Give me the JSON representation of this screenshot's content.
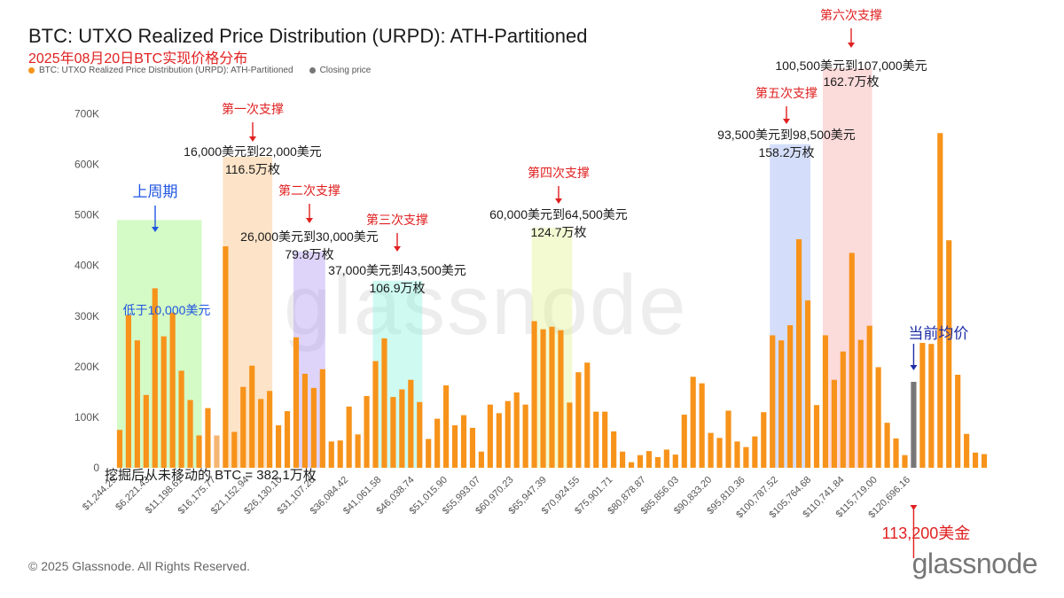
{
  "header": {
    "title": "BTC: UTXO Realized Price Distribution (URPD): ATH-Partitioned",
    "subtitle": "2025年08月20日BTC实现价格分布"
  },
  "legend": {
    "items": [
      {
        "label": "BTC: UTXO Realized Price Distribution (URPD): ATH-Partitioned",
        "color": "#f7931a"
      },
      {
        "label": "Closing price",
        "color": "#777777"
      }
    ]
  },
  "footer": {
    "copyright": "© 2025 Glassnode. All Rights Reserved.",
    "brand": "glassnode"
  },
  "watermark": "glassnode",
  "chart_data": {
    "type": "bar",
    "ylim": [
      0,
      750000
    ],
    "y_ticks": [
      0,
      100000,
      200000,
      300000,
      400000,
      500000,
      600000,
      700000
    ],
    "y_tick_labels": [
      "0",
      "100K",
      "200K",
      "300K",
      "400K",
      "500K",
      "600K",
      "700K"
    ],
    "x_tick_labels": [
      "$1,244.29",
      "$6,221.43",
      "$11,198.61",
      "$16,175.77",
      "$21,152.94",
      "$26,130.10",
      "$31,107.26",
      "$36,084.42",
      "$41,061.58",
      "$46,038.74",
      "$51,015.90",
      "$55,993.07",
      "$60,970.23",
      "$65,947.39",
      "$70,924.55",
      "$75,901.71",
      "$80,878.87",
      "$85,856.03",
      "$90,833.20",
      "$95,810.36",
      "$100,787.52",
      "$105,764.68",
      "$110,741.84",
      "$115,719.00",
      "$120,696.16"
    ],
    "values": [
      75000,
      302000,
      252000,
      144000,
      355000,
      260000,
      307000,
      192000,
      134000,
      64000,
      118000,
      64000,
      438000,
      71000,
      160000,
      202000,
      136000,
      152000,
      84000,
      112000,
      258000,
      186000,
      158000,
      195000,
      52000,
      54000,
      121000,
      66000,
      142000,
      211000,
      256000,
      140000,
      155000,
      174000,
      130000,
      57000,
      97000,
      163000,
      84000,
      104000,
      79000,
      32000,
      125000,
      108000,
      132000,
      149000,
      125000,
      290000,
      274000,
      279000,
      272000,
      129000,
      189000,
      208000,
      111000,
      111000,
      72000,
      32000,
      11000,
      25000,
      33000,
      21000,
      36000,
      26000,
      105000,
      180000,
      167000,
      69000,
      59000,
      113000,
      52000,
      41000,
      62000,
      110000,
      262000,
      252000,
      282000,
      452000,
      331000,
      124000,
      262000,
      174000,
      230000,
      425000,
      253000,
      281000,
      199000,
      89000,
      58000,
      25000,
      170000,
      247000,
      245000,
      662000,
      450000,
      184000,
      67000,
      30000,
      27000
    ],
    "closing_price_index": 90,
    "highlighted_index": 11,
    "annotations": {
      "mined_unmoved": "挖掘后从未移动的 BTC = 382.1万枚",
      "closing_price_label": "113,200美金",
      "current_avg_label": "当前均价",
      "zones": [
        {
          "title": "上周期",
          "range_text": "低于10,000美元",
          "amount_text": "",
          "color": "#8ef26a",
          "title_color": "#1f55e0"
        },
        {
          "title": "第一次支撑",
          "range_text": "16,000美元到22,000美元",
          "amount_text": "116.5万枚",
          "color": "#f9b56c",
          "title_color": "#e02020"
        },
        {
          "title": "第二次支撑",
          "range_text": "26,000美元到30,000美元",
          "amount_text": "79.8万枚",
          "color": "#a78ef2",
          "title_color": "#e02020"
        },
        {
          "title": "第三次支撑",
          "range_text": "37,000美元到43,500美元",
          "amount_text": "106.9万枚",
          "color": "#7ff2de",
          "title_color": "#e02020"
        },
        {
          "title": "第四次支撑",
          "range_text": "60,000美元到64,500美元",
          "amount_text": "124.7万枚",
          "color": "#dff28a",
          "title_color": "#e02020"
        },
        {
          "title": "第五次支撑",
          "range_text": "93,500美元到98,500美元",
          "amount_text": "158.2万枚",
          "color": "#8fa8f2",
          "title_color": "#e02020"
        },
        {
          "title": "第六次支撑",
          "range_text": "100,500美元到107,000美元",
          "amount_text": "162.7万枚",
          "color": "#f7a0a0",
          "title_color": "#e02020"
        }
      ]
    }
  }
}
